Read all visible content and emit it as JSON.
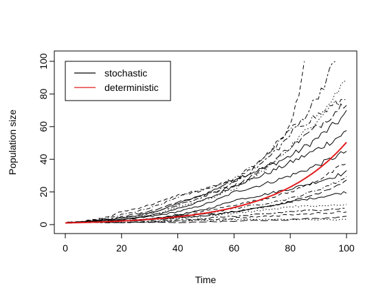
{
  "chart_data": {
    "type": "line",
    "title": "",
    "xlabel": "Time",
    "ylabel": "Population size",
    "xlim": [
      0,
      100
    ],
    "ylim": [
      0,
      100
    ],
    "xticks": [
      0,
      20,
      40,
      60,
      80,
      100
    ],
    "yticks": [
      0,
      20,
      40,
      60,
      80,
      100
    ],
    "grid": false,
    "legend": {
      "placement": "top-left",
      "entries": [
        {
          "label": "stochastic",
          "color": "#000000"
        },
        {
          "label": "deterministic",
          "color": "#e41a1c"
        }
      ]
    },
    "deterministic": {
      "color": "#e41a1c",
      "x0": 0,
      "y0": 1,
      "rate": 0.0392,
      "x_end": 100
    },
    "stochastic_series": [
      {
        "dash": "solid",
        "points": [
          [
            0,
            1
          ],
          [
            20,
            4
          ],
          [
            40,
            13
          ],
          [
            60,
            28
          ],
          [
            80,
            42
          ],
          [
            100,
            68
          ]
        ]
      },
      {
        "dash": "solid",
        "points": [
          [
            0,
            1
          ],
          [
            20,
            3
          ],
          [
            40,
            10
          ],
          [
            60,
            24
          ],
          [
            80,
            38
          ],
          [
            100,
            57
          ]
        ]
      },
      {
        "dash": "solid",
        "points": [
          [
            0,
            1
          ],
          [
            20,
            3
          ],
          [
            40,
            8
          ],
          [
            60,
            20
          ],
          [
            80,
            30
          ],
          [
            100,
            45
          ]
        ]
      },
      {
        "dash": "solid",
        "points": [
          [
            0,
            1
          ],
          [
            20,
            2
          ],
          [
            40,
            6
          ],
          [
            60,
            15
          ],
          [
            80,
            22
          ],
          [
            100,
            32
          ]
        ]
      },
      {
        "dash": "solid",
        "points": [
          [
            0,
            1
          ],
          [
            20,
            2
          ],
          [
            40,
            4
          ],
          [
            60,
            8
          ],
          [
            80,
            14
          ],
          [
            100,
            20
          ]
        ]
      },
      {
        "dash": "dashed",
        "points": [
          [
            0,
            1
          ],
          [
            20,
            8
          ],
          [
            40,
            18
          ],
          [
            60,
            27
          ],
          [
            80,
            60
          ],
          [
            85,
            100
          ]
        ]
      },
      {
        "dash": "dashdot",
        "points": [
          [
            0,
            1
          ],
          [
            20,
            6
          ],
          [
            40,
            17
          ],
          [
            60,
            28
          ],
          [
            80,
            58
          ],
          [
            100,
            78
          ]
        ]
      },
      {
        "dash": "longdash",
        "points": [
          [
            0,
            1
          ],
          [
            20,
            5
          ],
          [
            40,
            14
          ],
          [
            60,
            24
          ],
          [
            80,
            48
          ],
          [
            100,
            76
          ]
        ]
      },
      {
        "dash": "dotted",
        "points": [
          [
            0,
            1
          ],
          [
            20,
            3
          ],
          [
            40,
            11
          ],
          [
            60,
            22
          ],
          [
            80,
            48
          ],
          [
            100,
            90
          ]
        ]
      },
      {
        "dash": "twodash",
        "points": [
          [
            0,
            1
          ],
          [
            20,
            4
          ],
          [
            40,
            12
          ],
          [
            60,
            26
          ],
          [
            80,
            55
          ],
          [
            96,
            100
          ]
        ]
      },
      {
        "dash": "dashed",
        "points": [
          [
            0,
            1
          ],
          [
            20,
            2
          ],
          [
            40,
            6
          ],
          [
            60,
            12
          ],
          [
            80,
            20
          ],
          [
            100,
            38
          ]
        ]
      },
      {
        "dash": "dashdot",
        "points": [
          [
            0,
            1
          ],
          [
            20,
            2
          ],
          [
            40,
            5
          ],
          [
            60,
            10
          ],
          [
            80,
            16
          ],
          [
            100,
            29
          ]
        ]
      },
      {
        "dash": "longdash",
        "points": [
          [
            0,
            1
          ],
          [
            20,
            2
          ],
          [
            40,
            5
          ],
          [
            60,
            8
          ],
          [
            80,
            14
          ],
          [
            100,
            27
          ]
        ]
      },
      {
        "dash": "dotted",
        "points": [
          [
            0,
            1
          ],
          [
            20,
            2
          ],
          [
            40,
            4
          ],
          [
            60,
            7
          ],
          [
            80,
            11
          ],
          [
            100,
            12
          ]
        ]
      },
      {
        "dash": "twodash",
        "points": [
          [
            0,
            1
          ],
          [
            20,
            1
          ],
          [
            40,
            3
          ],
          [
            60,
            5
          ],
          [
            80,
            8
          ],
          [
            100,
            10
          ]
        ]
      },
      {
        "dash": "dashed",
        "points": [
          [
            0,
            1
          ],
          [
            20,
            1
          ],
          [
            40,
            2
          ],
          [
            60,
            4
          ],
          [
            80,
            6
          ],
          [
            100,
            8
          ]
        ]
      },
      {
        "dash": "dotted",
        "points": [
          [
            0,
            1
          ],
          [
            20,
            1
          ],
          [
            40,
            2
          ],
          [
            60,
            3
          ],
          [
            80,
            3
          ],
          [
            100,
            3
          ]
        ]
      },
      {
        "dash": "longdash",
        "points": [
          [
            0,
            1
          ],
          [
            20,
            1
          ],
          [
            40,
            1
          ],
          [
            60,
            2
          ],
          [
            80,
            3
          ],
          [
            100,
            5
          ]
        ]
      }
    ]
  }
}
